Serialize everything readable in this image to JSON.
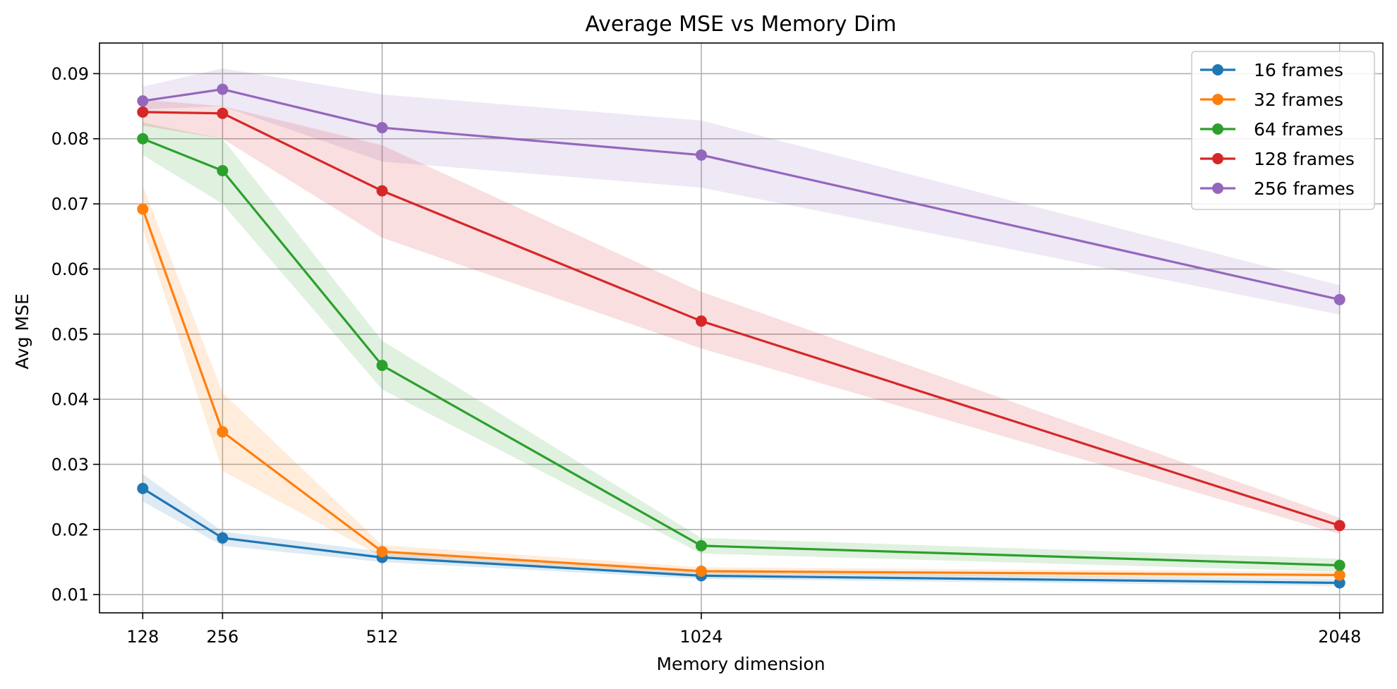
{
  "chart_data": {
    "type": "line",
    "title": "Average MSE vs Memory Dim",
    "xlabel": "Memory dimension",
    "ylabel": "Avg MSE",
    "x": [
      128,
      256,
      512,
      1024,
      2048
    ],
    "x_tick_labels": [
      "128",
      "256",
      "512",
      "1024",
      "2048"
    ],
    "y_ticks": [
      0.01,
      0.02,
      0.03,
      0.04,
      0.05,
      0.06,
      0.07,
      0.08,
      0.09
    ],
    "y_tick_labels": [
      "0.01",
      "0.02",
      "0.03",
      "0.04",
      "0.05",
      "0.06",
      "0.07",
      "0.08",
      "0.09"
    ],
    "ylim": [
      0.0072,
      0.0947
    ],
    "grid": true,
    "legend_position": "top-right",
    "series": [
      {
        "name": "16 frames",
        "color": "#1f77b4",
        "values": [
          0.0263,
          0.0187,
          0.0157,
          0.0129,
          0.0118
        ],
        "lower": [
          0.0243,
          0.0175,
          0.015,
          0.0124,
          0.0113
        ],
        "upper": [
          0.0285,
          0.0197,
          0.0166,
          0.0135,
          0.0124
        ]
      },
      {
        "name": "32 frames",
        "color": "#ff7f0e",
        "values": [
          0.0692,
          0.035,
          0.0166,
          0.0136,
          0.013
        ],
        "lower": [
          0.0662,
          0.029,
          0.0158,
          0.0131,
          0.0125
        ],
        "upper": [
          0.0728,
          0.041,
          0.0176,
          0.0142,
          0.0135
        ]
      },
      {
        "name": "64 frames",
        "color": "#2ca02c",
        "values": [
          0.08,
          0.0751,
          0.0452,
          0.0175,
          0.0145
        ],
        "lower": [
          0.0775,
          0.07,
          0.0415,
          0.0163,
          0.0135
        ],
        "upper": [
          0.0825,
          0.08,
          0.049,
          0.0187,
          0.0155
        ]
      },
      {
        "name": "128 frames",
        "color": "#d62728",
        "values": [
          0.0841,
          0.0839,
          0.072,
          0.052,
          0.0206
        ],
        "lower": [
          0.082,
          0.08,
          0.0648,
          0.0478,
          0.0193
        ],
        "upper": [
          0.086,
          0.085,
          0.079,
          0.0565,
          0.0218
        ]
      },
      {
        "name": "256 frames",
        "color": "#9467bd",
        "values": [
          0.0858,
          0.0876,
          0.0817,
          0.0775,
          0.0553
        ],
        "lower": [
          0.0845,
          0.085,
          0.0765,
          0.0725,
          0.053
        ],
        "upper": [
          0.088,
          0.0908,
          0.0868,
          0.0828,
          0.0575
        ]
      }
    ]
  }
}
